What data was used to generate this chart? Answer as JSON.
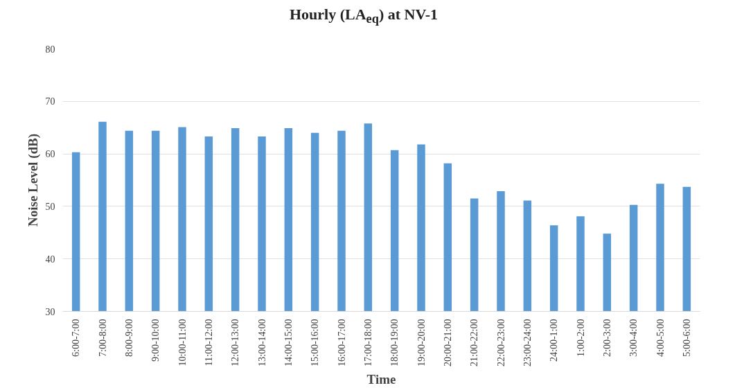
{
  "chart_data": {
    "type": "bar",
    "title": "Hourly (LA$_{eq}$) at NV-1",
    "xlabel": "Time",
    "ylabel": "Noise Level (dB)",
    "categories": [
      "6:00-7:00",
      "7:00-8:00",
      "8:00-9:00",
      "9:00-10:00",
      "10:00-11:00",
      "11:00-12:00",
      "12:00-13:00",
      "13:00-14:00",
      "14:00-15:00",
      "15:00-16:00",
      "16:00-17:00",
      "17:00-18:00",
      "18:00-19:00",
      "19:00-20:00",
      "20:00-21:00",
      "21:00-22:00",
      "22:00-23:00",
      "23:00-24:00",
      "24:00-1:00",
      "1:00-2:00",
      "2:00-3:00",
      "3:00-4:00",
      "4:00-5:00",
      "5:00-6:00"
    ],
    "values": [
      60.3,
      66.1,
      64.4,
      64.4,
      65.1,
      63.3,
      64.9,
      63.3,
      64.9,
      64.0,
      64.4,
      65.8,
      60.7,
      61.8,
      58.2,
      51.5,
      52.9,
      51.1,
      46.4,
      48.1,
      44.8,
      50.3,
      54.3,
      53.7
    ],
    "color": "#5b9bd5",
    "ylim": [
      30,
      80
    ],
    "yticks": [
      30,
      40,
      50,
      60,
      70,
      80
    ],
    "grid": "y"
  }
}
